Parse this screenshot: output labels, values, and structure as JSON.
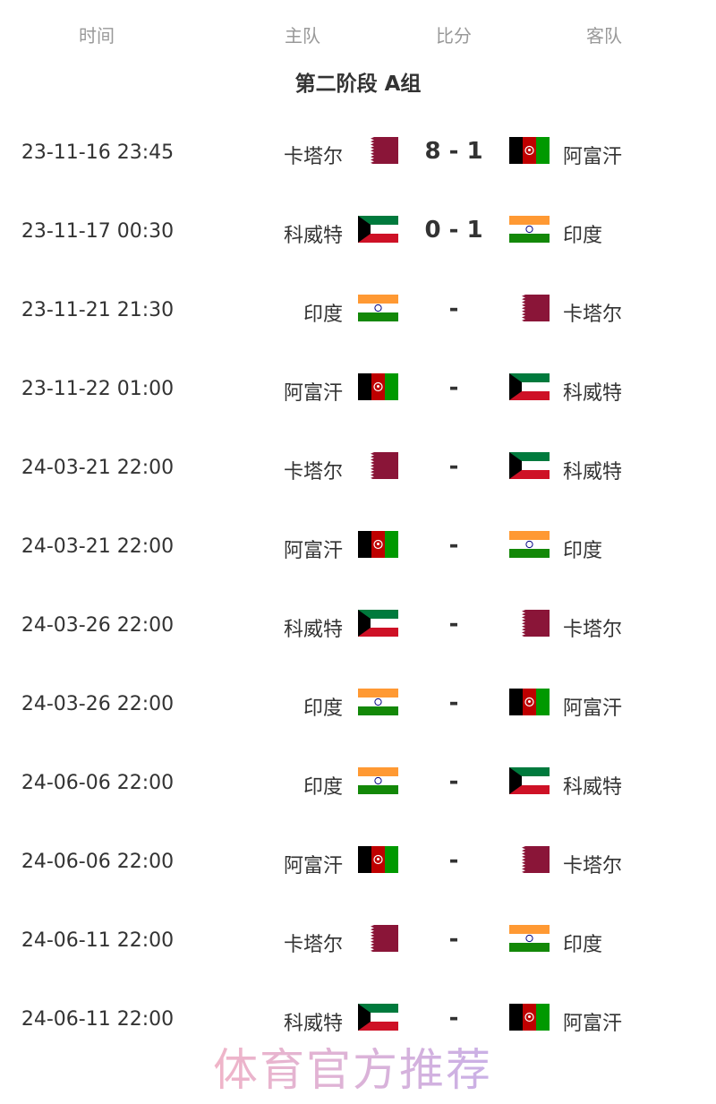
{
  "header": {
    "time": "时间",
    "home": "主队",
    "score": "比分",
    "away": "客队"
  },
  "group_title": "第二阶段 A组",
  "matches": [
    {
      "time": "23-11-16 23:45",
      "home": "卡塔尔",
      "home_flag": "qatar",
      "score": "8 - 1",
      "away": "阿富汗",
      "away_flag": "afghanistan"
    },
    {
      "time": "23-11-17 00:30",
      "home": "科威特",
      "home_flag": "kuwait",
      "score": "0 - 1",
      "away": "印度",
      "away_flag": "india"
    },
    {
      "time": "23-11-21 21:30",
      "home": "印度",
      "home_flag": "india",
      "score": "-",
      "away": "卡塔尔",
      "away_flag": "qatar"
    },
    {
      "time": "23-11-22 01:00",
      "home": "阿富汗",
      "home_flag": "afghanistan",
      "score": "-",
      "away": "科威特",
      "away_flag": "kuwait"
    },
    {
      "time": "24-03-21 22:00",
      "home": "卡塔尔",
      "home_flag": "qatar",
      "score": "-",
      "away": "科威特",
      "away_flag": "kuwait"
    },
    {
      "time": "24-03-21 22:00",
      "home": "阿富汗",
      "home_flag": "afghanistan",
      "score": "-",
      "away": "印度",
      "away_flag": "india"
    },
    {
      "time": "24-03-26 22:00",
      "home": "科威特",
      "home_flag": "kuwait",
      "score": "-",
      "away": "卡塔尔",
      "away_flag": "qatar"
    },
    {
      "time": "24-03-26 22:00",
      "home": "印度",
      "home_flag": "india",
      "score": "-",
      "away": "阿富汗",
      "away_flag": "afghanistan"
    },
    {
      "time": "24-06-06 22:00",
      "home": "印度",
      "home_flag": "india",
      "score": "-",
      "away": "科威特",
      "away_flag": "kuwait"
    },
    {
      "time": "24-06-06 22:00",
      "home": "阿富汗",
      "home_flag": "afghanistan",
      "score": "-",
      "away": "卡塔尔",
      "away_flag": "qatar"
    },
    {
      "time": "24-06-11 22:00",
      "home": "卡塔尔",
      "home_flag": "qatar",
      "score": "-",
      "away": "印度",
      "away_flag": "india"
    },
    {
      "time": "24-06-11 22:00",
      "home": "科威特",
      "home_flag": "kuwait",
      "score": "-",
      "away": "阿富汗",
      "away_flag": "afghanistan"
    }
  ],
  "watermark": "体育官方推荐"
}
